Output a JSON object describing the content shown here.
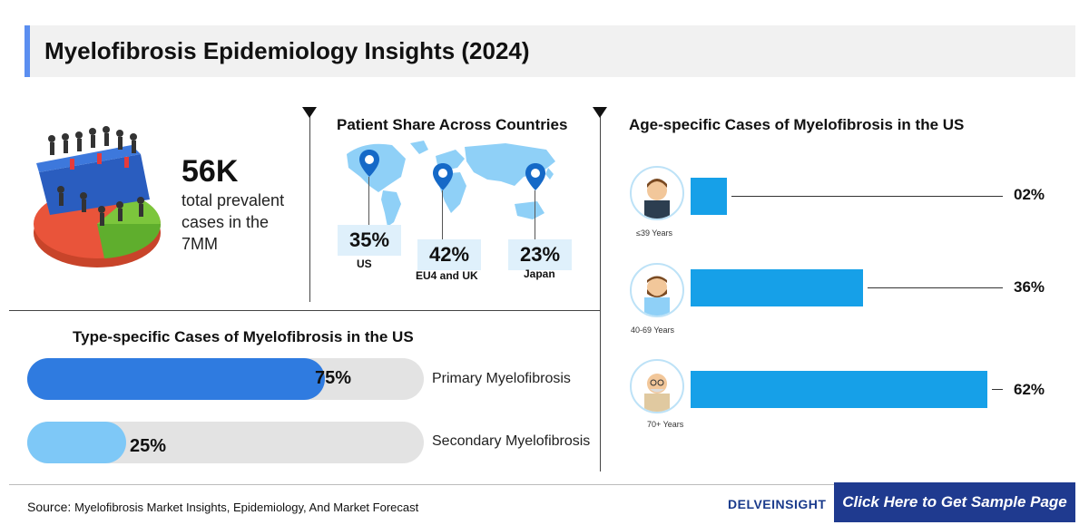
{
  "title": "Myelofibrosis Epidemiology Insights (2024)",
  "prevalence": {
    "value": "56K",
    "description": "total prevalent cases in the 7MM"
  },
  "patient_share": {
    "heading": "Patient Share Across Countries",
    "countries": [
      {
        "pct": "35%",
        "name": "US"
      },
      {
        "pct": "42%",
        "name": "EU4 and UK"
      },
      {
        "pct": "23%",
        "name": "Japan"
      }
    ]
  },
  "age_specific": {
    "heading": "Age-specific Cases of Myelofibrosis in the US",
    "groups": [
      {
        "label": "≤39 Years",
        "pct": "02%",
        "value": 2
      },
      {
        "label": "40-69 Years",
        "pct": "36%",
        "value": 36
      },
      {
        "label": "70+ Years",
        "pct": "62%",
        "value": 62
      }
    ]
  },
  "type_specific": {
    "heading": "Type-specific Cases of Myelofibrosis in the US",
    "types": [
      {
        "name": "Primary Myelofibrosis",
        "pct": "75%",
        "value": 75
      },
      {
        "name": "Secondary Myelofibrosis",
        "pct": "25%",
        "value": 25
      }
    ]
  },
  "footer": {
    "source_label": "Source:",
    "source_text": "Myelofibrosis Market Insights, Epidemiology, And Market Forecast",
    "logo_text": "DELVEINSIGHT",
    "cta_label": "Click Here to Get Sample Page"
  },
  "colors": {
    "accent": "#5b8ef0",
    "bar_blue": "#16a0e8",
    "primary_fill": "#2f7be0",
    "secondary_fill": "#7ec8f7",
    "cta_bg": "#1f3a8f"
  }
}
